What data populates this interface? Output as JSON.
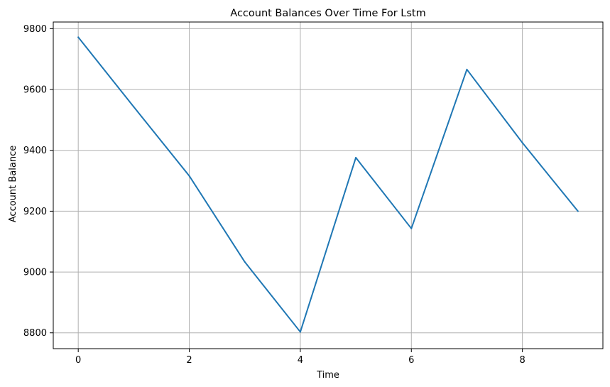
{
  "chart_data": {
    "type": "line",
    "title": "Account Balances Over Time For Lstm",
    "xlabel": "Time",
    "ylabel": "Account Balance",
    "xlim": [
      -0.45,
      9.45
    ],
    "ylim": [
      8748,
      9822
    ],
    "xticks": [
      0,
      2,
      4,
      6,
      8
    ],
    "yticks": [
      8800,
      9000,
      9200,
      9400,
      9600,
      9800
    ],
    "grid": true,
    "series": [
      {
        "x": [
          0,
          1,
          2,
          3,
          4,
          5,
          6,
          7,
          8,
          9
        ],
        "values": [
          9772,
          9543,
          9316,
          9033,
          8803,
          9376,
          9143,
          9666,
          9425,
          9200
        ],
        "color": "#1f77b4"
      }
    ]
  }
}
